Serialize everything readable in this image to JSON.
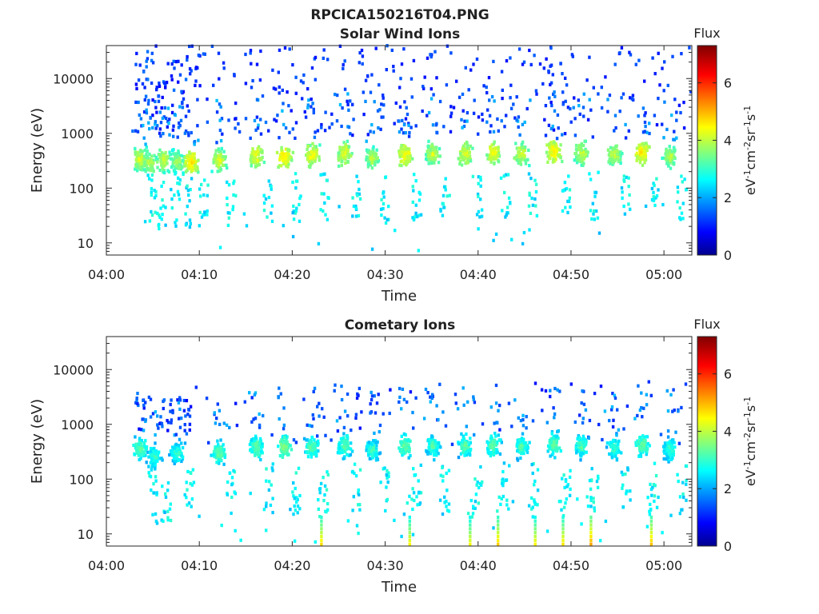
{
  "figure_title": "RPCICA150216T04.PNG",
  "chart_data": [
    {
      "type": "heatmap",
      "title": "Solar Wind Ions",
      "xlabel": "Time",
      "ylabel": "Energy (eV)",
      "x_ticks": [
        "04:00",
        "04:10",
        "04:20",
        "04:30",
        "04:40",
        "04:50",
        "05:00"
      ],
      "x_range_min": [
        0,
        63
      ],
      "y_scale": "log",
      "y_ticks": [
        "10",
        "100",
        "1000",
        "10000"
      ],
      "y_range": [
        6,
        40000
      ],
      "colorbar": {
        "title": "Flux",
        "units": "eV-1cm-2sr-1s-1",
        "ticks": [
          "0",
          "2",
          "4",
          "6"
        ],
        "range": [
          0,
          7.3
        ],
        "colormap": "jet"
      },
      "clusters": [
        {
          "t": 3.5,
          "e": 350,
          "flux": 4.4
        },
        {
          "t": 4.5,
          "e": 280,
          "flux": 4.2
        },
        {
          "t": 6.0,
          "e": 320,
          "flux": 4.3
        },
        {
          "t": 7.5,
          "e": 300,
          "flux": 4.0
        },
        {
          "t": 9.0,
          "e": 300,
          "flux": 4.8
        },
        {
          "t": 12.0,
          "e": 320,
          "flux": 4.4
        },
        {
          "t": 16.0,
          "e": 380,
          "flux": 4.6
        },
        {
          "t": 19.0,
          "e": 380,
          "flux": 4.8
        },
        {
          "t": 22.0,
          "e": 400,
          "flux": 4.6
        },
        {
          "t": 25.5,
          "e": 420,
          "flux": 4.5
        },
        {
          "t": 28.5,
          "e": 350,
          "flux": 4.2
        },
        {
          "t": 32.0,
          "e": 400,
          "flux": 4.7
        },
        {
          "t": 35.0,
          "e": 420,
          "flux": 4.3
        },
        {
          "t": 38.5,
          "e": 420,
          "flux": 4.5
        },
        {
          "t": 41.5,
          "e": 450,
          "flux": 4.6
        },
        {
          "t": 44.5,
          "e": 420,
          "flux": 4.4
        },
        {
          "t": 48.0,
          "e": 460,
          "flux": 4.8
        },
        {
          "t": 51.0,
          "e": 420,
          "flux": 4.3
        },
        {
          "t": 54.5,
          "e": 420,
          "flux": 4.3
        },
        {
          "t": 57.5,
          "e": 450,
          "flux": 4.8
        },
        {
          "t": 60.5,
          "e": 380,
          "flux": 4.1
        }
      ]
    },
    {
      "type": "heatmap",
      "title": "Cometary Ions",
      "xlabel": "Time",
      "ylabel": "Energy (eV)",
      "x_ticks": [
        "04:00",
        "04:10",
        "04:20",
        "04:30",
        "04:40",
        "04:50",
        "05:00"
      ],
      "x_range_min": [
        0,
        63
      ],
      "y_scale": "log",
      "y_ticks": [
        "10",
        "100",
        "1000",
        "10000"
      ],
      "y_range": [
        6,
        40000
      ],
      "colorbar": {
        "title": "Flux",
        "units": "eV-1cm-2sr-1s-1",
        "ticks": [
          "0",
          "2",
          "4",
          "6"
        ],
        "range": [
          0,
          7.3
        ],
        "colormap": "jet"
      },
      "clusters": [
        {
          "t": 3.5,
          "e": 350,
          "flux": 3.6
        },
        {
          "t": 5.0,
          "e": 260,
          "flux": 3.3
        },
        {
          "t": 7.5,
          "e": 300,
          "flux": 3.3
        },
        {
          "t": 12.0,
          "e": 300,
          "flux": 3.6
        },
        {
          "t": 16.0,
          "e": 380,
          "flux": 3.6
        },
        {
          "t": 19.0,
          "e": 380,
          "flux": 3.8
        },
        {
          "t": 22.0,
          "e": 380,
          "flux": 3.5
        },
        {
          "t": 25.5,
          "e": 400,
          "flux": 3.5
        },
        {
          "t": 28.5,
          "e": 340,
          "flux": 3.3
        },
        {
          "t": 32.0,
          "e": 400,
          "flux": 3.6
        },
        {
          "t": 35.0,
          "e": 400,
          "flux": 3.4
        },
        {
          "t": 38.5,
          "e": 400,
          "flux": 3.5
        },
        {
          "t": 41.5,
          "e": 420,
          "flux": 3.6
        },
        {
          "t": 44.5,
          "e": 400,
          "flux": 3.4
        },
        {
          "t": 48.0,
          "e": 420,
          "flux": 3.6
        },
        {
          "t": 51.0,
          "e": 400,
          "flux": 3.4
        },
        {
          "t": 54.5,
          "e": 380,
          "flux": 3.3
        },
        {
          "t": 57.5,
          "e": 420,
          "flux": 3.6
        },
        {
          "t": 60.5,
          "e": 350,
          "flux": 3.3
        }
      ],
      "low_energy_streaks": [
        {
          "t": 23.0,
          "e": 8,
          "flux": 4.8
        },
        {
          "t": 32.5,
          "e": 8,
          "flux": 4.6
        },
        {
          "t": 39.0,
          "e": 8,
          "flux": 4.5
        },
        {
          "t": 42.0,
          "e": 8,
          "flux": 4.9
        },
        {
          "t": 46.0,
          "e": 8,
          "flux": 4.6
        },
        {
          "t": 49.0,
          "e": 8,
          "flux": 4.7
        },
        {
          "t": 52.0,
          "e": 8,
          "flux": 5.2
        },
        {
          "t": 58.5,
          "e": 8,
          "flux": 5.0
        }
      ]
    }
  ]
}
